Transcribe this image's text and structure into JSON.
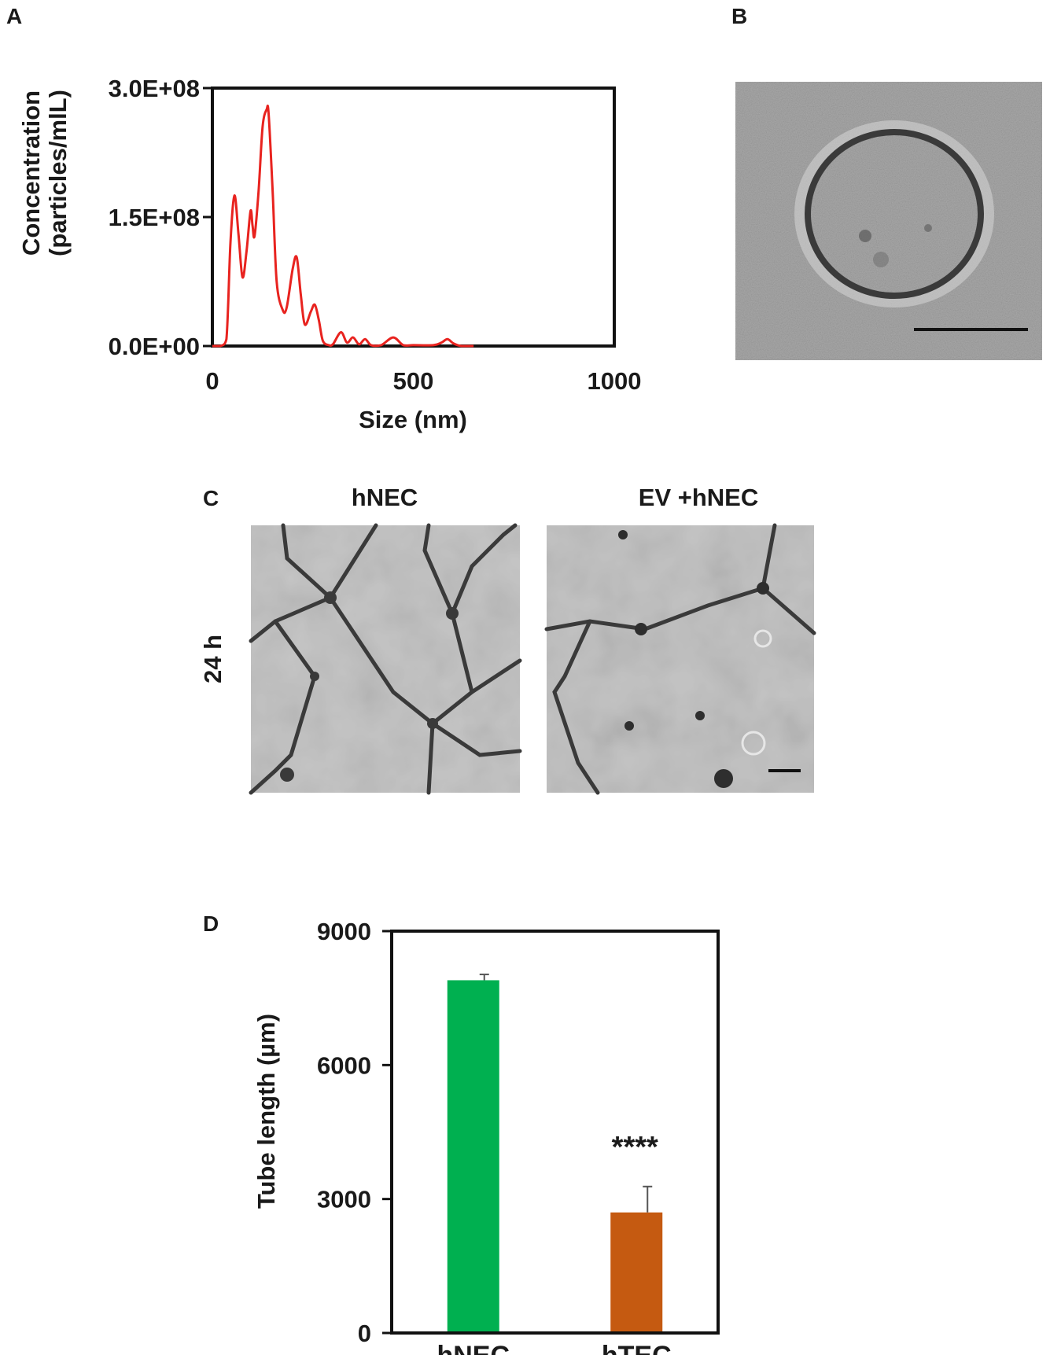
{
  "panels": {
    "a": {
      "letter": "A"
    },
    "b": {
      "letter": "B"
    },
    "c": {
      "letter": "C",
      "col_labels": [
        "hNEC",
        "EV +hNEC"
      ],
      "row_label": "24 h"
    },
    "d": {
      "letter": "D"
    }
  },
  "colors": {
    "nta_line": "#e8231f",
    "bar_hnec": "#00b050",
    "bar_htec": "#c55a11",
    "axis": "#111111",
    "micrograph_bg": "#b4b4b4",
    "tube": "#3a3a3a"
  },
  "chart_data": [
    {
      "type": "line",
      "panel": "A",
      "xlabel": "Size (nm)",
      "ylabel": [
        "Concentration",
        "(particles/mlL)"
      ],
      "xlim": [
        0,
        1000
      ],
      "ylim": [
        0,
        300000000
      ],
      "xticks": [
        0,
        500,
        1000
      ],
      "xtick_labels": [
        "0",
        "500",
        "1000"
      ],
      "yticks": [
        0,
        150000000,
        300000000
      ],
      "ytick_labels": [
        "0.0E+00",
        "1.5E+08",
        "3.0E+08"
      ],
      "series": [
        {
          "x": [
            0,
            20,
            35,
            45,
            55,
            65,
            75,
            85,
            95,
            100,
            105,
            115,
            125,
            135,
            140,
            150,
            160,
            175,
            185,
            200,
            210,
            220,
            230,
            245,
            255,
            265,
            275,
            290,
            300,
            320,
            335,
            350,
            365,
            380,
            395,
            420,
            450,
            475,
            500,
            550,
            570,
            585,
            600,
            620,
            650
          ],
          "y": [
            0,
            0,
            8000000,
            120000000,
            175000000,
            130000000,
            80000000,
            110000000,
            157000000,
            140000000,
            128000000,
            180000000,
            255000000,
            275000000,
            270000000,
            180000000,
            75000000,
            42000000,
            45000000,
            90000000,
            103000000,
            60000000,
            25000000,
            40000000,
            48000000,
            30000000,
            6000000,
            1000000,
            2000000,
            16000000,
            4000000,
            10000000,
            2000000,
            8000000,
            1000000,
            1000000,
            10000000,
            1000000,
            1000000,
            1000000,
            4000000,
            8000000,
            3000000,
            0,
            0
          ]
        }
      ]
    },
    {
      "type": "bar",
      "panel": "D",
      "categories": [
        "hNEC",
        "hTEC"
      ],
      "values": [
        7900,
        2700
      ],
      "errors": [
        130,
        580
      ],
      "xlabel": "",
      "ylabel": "Tube length (µm)",
      "ylim": [
        0,
        9000
      ],
      "yticks": [
        0,
        3000,
        6000,
        9000
      ],
      "ytick_labels": [
        "0",
        "3000",
        "6000",
        "9000"
      ],
      "annotations": [
        {
          "category": "hTEC",
          "text": "****"
        }
      ]
    }
  ]
}
